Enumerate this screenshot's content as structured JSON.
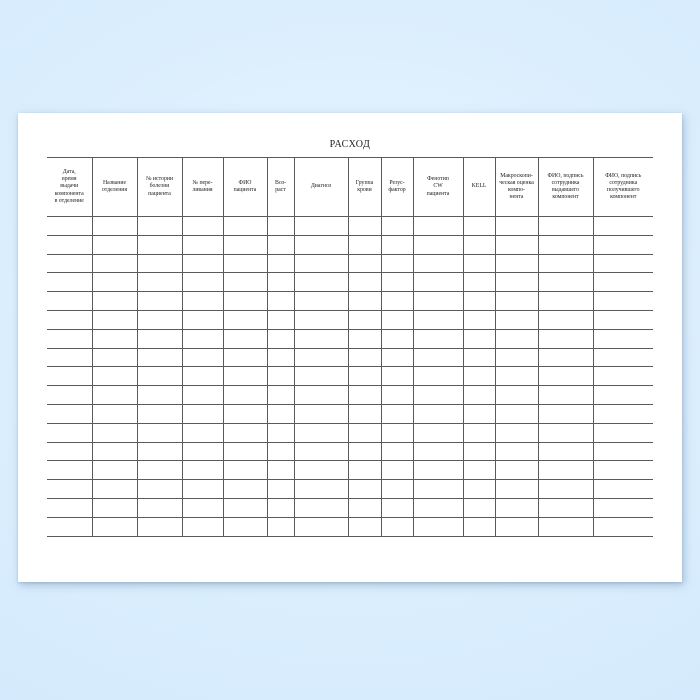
{
  "colors": {
    "background_edge": "#d0e7fc",
    "background_center": "#eaf4fe",
    "paper": "#ffffff",
    "table_line": "#5a5a5a",
    "text": "#1b1b1b"
  },
  "document": {
    "title": "РАСХОД",
    "table": {
      "columns": [
        {
          "id": "issue-date-time",
          "label": "Дата,\nвремя\nвыдачи\nкомпонента\nв отделение"
        },
        {
          "id": "department-name",
          "label": "Название\nотделения"
        },
        {
          "id": "case-history-no",
          "label": "№ истории\nболезни\nпациента"
        },
        {
          "id": "transfusion-no",
          "label": "№ пере-\nливания"
        },
        {
          "id": "patient-name",
          "label": "ФИО\nпациента"
        },
        {
          "id": "age",
          "label": "Воз-\nраст"
        },
        {
          "id": "diagnosis",
          "label": "Диагноз"
        },
        {
          "id": "blood-group",
          "label": "Группа\nкрови"
        },
        {
          "id": "rh-factor",
          "label": "Резус-\nфактор"
        },
        {
          "id": "phenotype-cw",
          "label": "Фенотип\nCW\nпациента"
        },
        {
          "id": "kell",
          "label": "KELL"
        },
        {
          "id": "macro-assessment",
          "label": "Макроскопи-\nческая оценка\nкомпо-\nнента"
        },
        {
          "id": "issuer-signature",
          "label": "ФИО, подпись\nсотрудника\nвыдавшего\nкомпонент"
        },
        {
          "id": "receiver-signature",
          "label": "ФИО, подпись\nсотрудника\nполучившего\nкомпонент"
        }
      ],
      "empty_row_count": 17,
      "empty_cell_value": ""
    }
  }
}
